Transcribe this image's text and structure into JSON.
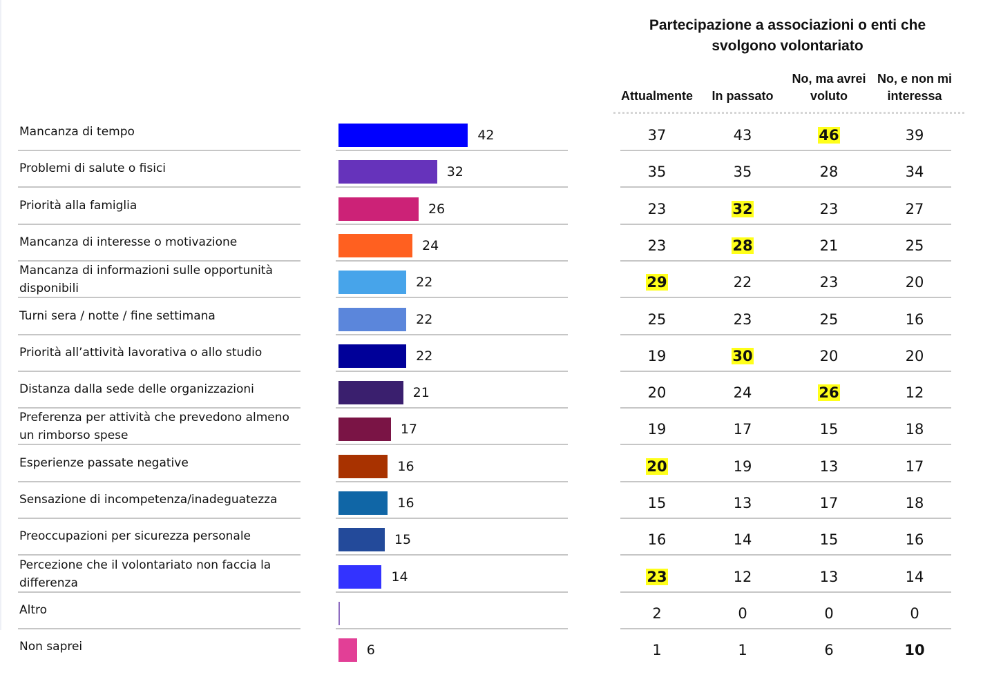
{
  "header": {
    "title_line1": "Partecipazione a associazioni o enti che",
    "title_line2": "svolgono volontariato",
    "columns": [
      {
        "line1": "",
        "line2": "Attualmente"
      },
      {
        "line1": "",
        "line2": "In passato"
      },
      {
        "line1": "No, ma avrei",
        "line2": "voluto"
      },
      {
        "line1": "No, e non mi",
        "line2": "interessa"
      }
    ]
  },
  "colors": {
    "highlight": "#FFFF1A",
    "separator": "#C6C6C6"
  },
  "chart_data": {
    "type": "bar",
    "orientation": "horizontal",
    "title": "Partecipazione a associazioni o enti che svolgono volontariato",
    "categories": [
      "Mancanza di tempo",
      "Problemi di salute o fisici",
      "Priorità alla famiglia",
      "Mancanza di interesse o motivazione",
      "Mancanza di informazioni sulle opportunità disponibili",
      "Turni sera / notte / fine settimana",
      "Priorità all’attività lavorativa o allo studio",
      "Distanza dalla sede delle organizzazioni",
      "Preferenza per attività che prevedono almeno un rimborso spese",
      "Esperienze passate negative",
      "Sensazione di incompetenza/inadeguatezza",
      "Preoccupazioni per sicurezza personale",
      "Percezione che il volontariato non faccia la differenza",
      "Altro",
      "Non saprei"
    ],
    "values": [
      42,
      32,
      26,
      24,
      22,
      22,
      22,
      21,
      17,
      16,
      16,
      15,
      14,
      0.5,
      6
    ],
    "value_labels": [
      "42",
      "32",
      "26",
      "24",
      "22",
      "22",
      "22",
      "21",
      "17",
      "16",
      "16",
      "15",
      "14",
      "",
      "6"
    ],
    "bar_colors": [
      "#0000FF",
      "#6633BB",
      "#CC2277",
      "#FF6020",
      "#47A4EA",
      "#5B86DB",
      "#000099",
      "#3A1F6E",
      "#7A1445",
      "#A83200",
      "#1066A6",
      "#234A9A",
      "#3333FF",
      "#8E6CC0",
      "#E23F96"
    ],
    "xlim": [
      0,
      50
    ],
    "grid": false,
    "legend": "none",
    "table": {
      "columns": [
        "Attualmente",
        "In passato",
        "No, ma avrei voluto",
        "No, e non mi interessa"
      ],
      "rows": [
        [
          37,
          43,
          46,
          39
        ],
        [
          35,
          35,
          28,
          34
        ],
        [
          23,
          32,
          23,
          27
        ],
        [
          23,
          28,
          21,
          25
        ],
        [
          29,
          22,
          23,
          20
        ],
        [
          25,
          23,
          25,
          16
        ],
        [
          19,
          30,
          20,
          20
        ],
        [
          20,
          24,
          26,
          12
        ],
        [
          19,
          17,
          15,
          18
        ],
        [
          20,
          19,
          13,
          17
        ],
        [
          15,
          13,
          17,
          18
        ],
        [
          16,
          14,
          15,
          16
        ],
        [
          23,
          12,
          13,
          14
        ],
        [
          2,
          0,
          0,
          0
        ],
        [
          1,
          1,
          6,
          10
        ]
      ],
      "highlighted": [
        [
          0,
          2
        ],
        [
          2,
          1
        ],
        [
          3,
          1
        ],
        [
          4,
          0
        ],
        [
          6,
          1
        ],
        [
          7,
          2
        ],
        [
          9,
          0
        ],
        [
          12,
          0
        ]
      ],
      "bold_only": [
        [
          14,
          3
        ]
      ]
    }
  },
  "rows": [
    {
      "label": "Mancanza di tempo",
      "value_label": "42",
      "cells": [
        "37",
        "43",
        "46",
        "39"
      ]
    },
    {
      "label": "Problemi di salute o fisici",
      "value_label": "32",
      "cells": [
        "35",
        "35",
        "28",
        "34"
      ]
    },
    {
      "label": "Priorità alla famiglia",
      "value_label": "26",
      "cells": [
        "23",
        "32",
        "23",
        "27"
      ]
    },
    {
      "label": "Mancanza di interesse o motivazione",
      "value_label": "24",
      "cells": [
        "23",
        "28",
        "21",
        "25"
      ]
    },
    {
      "label": "Mancanza di informazioni sulle opportunità disponibili",
      "value_label": "22",
      "cells": [
        "29",
        "22",
        "23",
        "20"
      ]
    },
    {
      "label": "Turni sera / notte / fine settimana",
      "value_label": "22",
      "cells": [
        "25",
        "23",
        "25",
        "16"
      ]
    },
    {
      "label": "Priorità all’attività lavorativa o allo studio",
      "value_label": "22",
      "cells": [
        "19",
        "30",
        "20",
        "20"
      ]
    },
    {
      "label": "Distanza dalla sede delle organizzazioni",
      "value_label": "21",
      "cells": [
        "20",
        "24",
        "26",
        "12"
      ]
    },
    {
      "label": "Preferenza per attività che prevedono almeno un rimborso spese",
      "value_label": "17",
      "cells": [
        "19",
        "17",
        "15",
        "18"
      ]
    },
    {
      "label": "Esperienze passate negative",
      "value_label": "16",
      "cells": [
        "20",
        "19",
        "13",
        "17"
      ]
    },
    {
      "label": "Sensazione di incompetenza/inadeguatezza",
      "value_label": "16",
      "cells": [
        "15",
        "13",
        "17",
        "18"
      ]
    },
    {
      "label": "Preoccupazioni per sicurezza personale",
      "value_label": "15",
      "cells": [
        "16",
        "14",
        "15",
        "16"
      ]
    },
    {
      "label": "Percezione che il volontariato non faccia la differenza",
      "value_label": "14",
      "cells": [
        "23",
        "12",
        "13",
        "14"
      ]
    },
    {
      "label": "Altro",
      "value_label": "",
      "cells": [
        "2",
        "0",
        "0",
        "0"
      ]
    },
    {
      "label": "Non saprei",
      "value_label": "6",
      "cells": [
        "1",
        "1",
        "6",
        "10"
      ]
    }
  ]
}
